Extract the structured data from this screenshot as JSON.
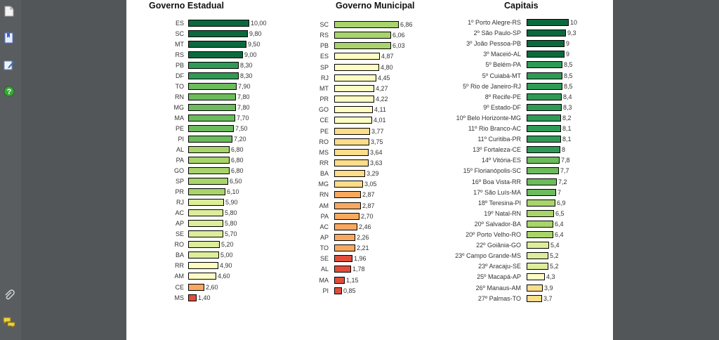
{
  "viewer": {
    "tools": [
      {
        "icon": "page-icon"
      },
      {
        "icon": "bookmarks-icon"
      },
      {
        "icon": "annotate-icon"
      },
      {
        "icon": "help-icon"
      },
      {
        "icon": "attachment-icon"
      },
      {
        "icon": "comments-icon"
      }
    ]
  },
  "chart_data": [
    {
      "type": "bar",
      "orientation": "horizontal",
      "title": "Governo Estadual",
      "xlim": [
        0,
        10
      ],
      "categories": [
        "ES",
        "SC",
        "MT",
        "RS",
        "PB",
        "DF",
        "TO",
        "RN",
        "MG",
        "MA",
        "PE",
        "PI",
        "AL",
        "PA",
        "GO",
        "SP",
        "PR",
        "RJ",
        "AC",
        "AP",
        "SE",
        "RO",
        "BA",
        "RR",
        "AM",
        "CE",
        "MS"
      ],
      "labels": [
        "10,00",
        "9,80",
        "9,50",
        "9,00",
        "8,30",
        "8,30",
        "7,90",
        "7,80",
        "7,80",
        "7,70",
        "7,50",
        "7,20",
        "6,80",
        "6,80",
        "6,80",
        "6,50",
        "6,10",
        "5,90",
        "5,80",
        "5,80",
        "5,70",
        "5,20",
        "5,00",
        "4,90",
        "4,60",
        "2,60",
        "1,40"
      ],
      "values": [
        10,
        9.8,
        9.5,
        9,
        8.3,
        8.3,
        7.9,
        7.8,
        7.8,
        7.7,
        7.5,
        7.2,
        6.8,
        6.8,
        6.8,
        6.5,
        6.1,
        5.9,
        5.8,
        5.8,
        5.7,
        5.2,
        5,
        4.9,
        4.6,
        2.6,
        1.4
      ]
    },
    {
      "type": "bar",
      "orientation": "horizontal",
      "title": "Governo Municipal",
      "xlim": [
        0,
        10
      ],
      "categories": [
        "SC",
        "RS",
        "PB",
        "ES",
        "SP",
        "RJ",
        "MT",
        "PR",
        "GO",
        "CE",
        "PE",
        "RO",
        "MS",
        "RR",
        "BA",
        "MG",
        "RN",
        "AM",
        "PA",
        "AC",
        "AP",
        "TO",
        "SE",
        "AL",
        "MA",
        "PI"
      ],
      "labels": [
        "6,86",
        "6,06",
        "6,03",
        "4,87",
        "4,80",
        "4,45",
        "4,27",
        "4,22",
        "4,11",
        "4,01",
        "3,77",
        "3,75",
        "3,64",
        "3,63",
        "3,29",
        "3,05",
        "2,87",
        "2,87",
        "2,70",
        "2,46",
        "2,26",
        "2,21",
        "1,96",
        "1,78",
        "1,15",
        "0,85"
      ],
      "values": [
        6.86,
        6.06,
        6.03,
        4.87,
        4.8,
        4.45,
        4.27,
        4.22,
        4.11,
        4.01,
        3.77,
        3.75,
        3.64,
        3.63,
        3.29,
        3.05,
        2.87,
        2.87,
        2.7,
        2.46,
        2.26,
        2.21,
        1.96,
        1.78,
        1.15,
        0.85
      ]
    },
    {
      "type": "bar",
      "orientation": "horizontal",
      "title": "Capitais",
      "xlim": [
        0,
        10
      ],
      "categories": [
        "1º Porto Alegre-RS",
        "2º São Paulo-SP",
        "3º João Pessoa-PB",
        "3º Maceió-AL",
        "5º Belém-PA",
        "5º Cuiabá-MT",
        "5º Rio de Janeiro-RJ",
        "8º Recife-PE",
        "9º Estado-DF",
        "10º Belo Horizonte-MG",
        "11º Rio Branco-AC",
        "11º Curitiba-PR",
        "13º Fortaleza-CE",
        "14º Vitória-ES",
        "15º Florianópolis-SC",
        "16º Boa Vista-RR",
        "17º São Luís-MA",
        "18º Teresina-PI",
        "19º Natal-RN",
        "20º Salvador-BA",
        "20º Porto Velho-RO",
        "22º Goiânia-GO",
        "23º Campo Grande-MS",
        "23º Aracaju-SE",
        "25º Macapá-AP",
        "26º Manaus-AM",
        "27º Palmas-TO"
      ],
      "labels": [
        "10",
        "9,3",
        "9",
        "9",
        "8,5",
        "8,5",
        "8,5",
        "8,4",
        "8,3",
        "8,2",
        "8,1",
        "8,1",
        "8",
        "7,8",
        "7,7",
        "7,2",
        "7",
        "6,9",
        "6,5",
        "6,4",
        "6,4",
        "5,4",
        "5,2",
        "5,2",
        "4,3",
        "3,9",
        "3,7"
      ],
      "values": [
        10,
        9.3,
        9,
        9,
        8.5,
        8.5,
        8.5,
        8.4,
        8.3,
        8.2,
        8.1,
        8.1,
        8,
        7.8,
        7.7,
        7.2,
        7,
        6.9,
        6.5,
        6.4,
        6.4,
        5.4,
        5.2,
        5.2,
        4.3,
        3.9,
        3.7
      ]
    }
  ]
}
